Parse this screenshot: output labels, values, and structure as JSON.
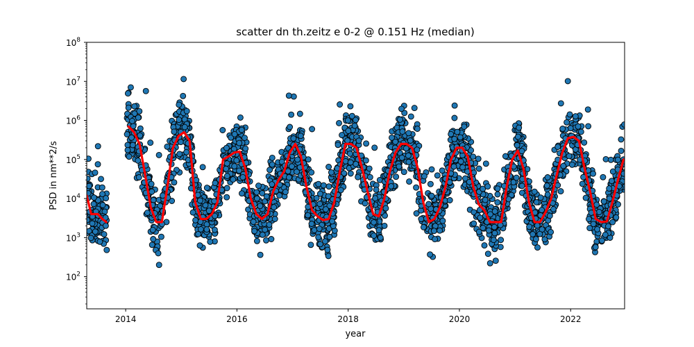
{
  "chart_data": {
    "type": "scatter",
    "title": "scatter dn th.zeitz e 0-2 @ 0.151 Hz (median)",
    "xlabel": "year",
    "ylabel": "PSD in nm**2/s",
    "xlim": [
      2013.3,
      2022.97
    ],
    "ylim": [
      15,
      100000000
    ],
    "yscale": "log",
    "grid": false,
    "x_ticks": [
      "2014",
      "2016",
      "2018",
      "2020",
      "2022"
    ],
    "y_ticks": [
      {
        "base": "10",
        "exp": "2"
      },
      {
        "base": "10",
        "exp": "3"
      },
      {
        "base": "10",
        "exp": "4"
      },
      {
        "base": "10",
        "exp": "5"
      },
      {
        "base": "10",
        "exp": "6"
      },
      {
        "base": "10",
        "exp": "7"
      },
      {
        "base": "10",
        "exp": "8"
      }
    ],
    "colors": {
      "scatter_fill": "#1f77b4",
      "scatter_edge": "#000000",
      "median_line": "#ff0000"
    },
    "median_series": {
      "x": [
        2013.3,
        2013.38,
        2013.5,
        2013.58,
        2013.65,
        2014.05,
        2014.15,
        2014.25,
        2014.35,
        2014.45,
        2014.55,
        2014.65,
        2014.75,
        2014.85,
        2014.95,
        2015.05,
        2015.15,
        2015.25,
        2015.35,
        2015.45,
        2015.55,
        2015.65,
        2015.75,
        2015.85,
        2015.95,
        2016.05,
        2016.15,
        2016.25,
        2016.35,
        2016.45,
        2016.55,
        2016.65,
        2016.75,
        2016.85,
        2016.95,
        2017.05,
        2017.15,
        2017.25,
        2017.35,
        2017.45,
        2017.55,
        2017.65,
        2017.75,
        2017.85,
        2017.95,
        2018.05,
        2018.15,
        2018.25,
        2018.35,
        2018.45,
        2018.55,
        2018.65,
        2018.75,
        2018.85,
        2018.95,
        2019.05,
        2019.15,
        2019.25,
        2019.35,
        2019.45,
        2019.55,
        2019.65,
        2019.75,
        2019.85,
        2019.95,
        2020.05,
        2020.15,
        2020.25,
        2020.35,
        2020.45,
        2020.55,
        2020.65,
        2020.75,
        2020.85,
        2020.95,
        2021.05,
        2021.15,
        2021.25,
        2021.35,
        2021.45,
        2021.55,
        2021.65,
        2021.75,
        2021.85,
        2021.95,
        2022.05,
        2022.15,
        2022.25,
        2022.35,
        2022.45,
        2022.55,
        2022.65,
        2022.75,
        2022.85,
        2022.95
      ],
      "y": [
        12000,
        4000,
        4000,
        3000,
        2500,
        700000,
        500000,
        250000,
        40000,
        6000,
        2500,
        2500,
        20000,
        200000,
        400000,
        500000,
        300000,
        8000,
        3000,
        3000,
        4000,
        8000,
        100000,
        120000,
        150000,
        160000,
        60000,
        10000,
        4000,
        3000,
        4000,
        15000,
        30000,
        50000,
        150000,
        250000,
        120000,
        20000,
        5000,
        3500,
        2800,
        3000,
        8000,
        50000,
        250000,
        250000,
        200000,
        60000,
        15000,
        4000,
        3500,
        10000,
        50000,
        150000,
        250000,
        250000,
        200000,
        60000,
        8000,
        2500,
        3000,
        6000,
        20000,
        100000,
        200000,
        200000,
        120000,
        20000,
        7000,
        5000,
        2500,
        2500,
        2500,
        20000,
        100000,
        170000,
        60000,
        8000,
        2500,
        2500,
        4500,
        10000,
        40000,
        150000,
        350000,
        380000,
        300000,
        60000,
        15000,
        3000,
        2500,
        2600,
        8000,
        30000,
        100000
      ]
    }
  }
}
